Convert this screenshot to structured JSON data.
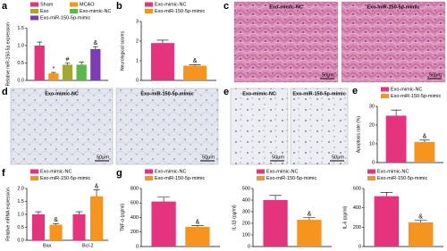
{
  "chart_data": [
    {
      "type": "bar",
      "panel": "a",
      "ylabel": "Relative miR-150-5p expression",
      "categories": [
        null
      ],
      "ylim": [
        0,
        1.5
      ],
      "yticks": [
        {
          "value": 0,
          "label": "0.0"
        },
        0.5,
        {
          "value": 1,
          "label": "1.0"
        },
        1.5
      ],
      "series": [
        {
          "name": "Sham",
          "color": "#e5337e",
          "values": [
            1.0
          ],
          "errors": [
            0.1
          ],
          "annotations": [
            null
          ]
        },
        {
          "name": "MCAO",
          "color": "#f7941d",
          "values": [
            0.2
          ],
          "errors": [
            0.03
          ],
          "annotations": [
            "*"
          ]
        },
        {
          "name": "Exo",
          "color": "#a3a833",
          "values": [
            0.45
          ],
          "errors": [
            0.05
          ],
          "annotations": [
            "#"
          ]
        },
        {
          "name": "Exo-mimic-NC",
          "color": "#5bb84a",
          "values": [
            0.45
          ],
          "errors": [
            0.07
          ],
          "annotations": [
            null
          ]
        },
        {
          "name": "Exo-miR-150-5p-mimic",
          "color": "#7d3bb8",
          "values": [
            0.9
          ],
          "errors": [
            0.07
          ],
          "annotations": [
            "&"
          ]
        }
      ]
    },
    {
      "type": "bar",
      "panel": "b",
      "ylabel": "Neurological scores",
      "categories": [
        null
      ],
      "ylim": [
        0,
        3
      ],
      "yticks": [
        0,
        1,
        2,
        3
      ],
      "series": [
        {
          "name": "Exo-mimic-NC",
          "color": "#e5337e",
          "values": [
            1.9
          ],
          "errors": [
            0.15
          ],
          "annotations": [
            null
          ]
        },
        {
          "name": "Exo-miR-150-5p-mimic",
          "color": "#f7941d",
          "values": [
            0.75
          ],
          "errors": [
            0.05
          ],
          "annotations": [
            "&"
          ]
        }
      ]
    },
    {
      "type": "bar",
      "panel": "e",
      "ylabel": "Apoptosis rate (%)",
      "categories": [
        null
      ],
      "ylim": [
        0,
        30
      ],
      "yticks": [
        0,
        10,
        20,
        30
      ],
      "series": [
        {
          "name": "Exo-mimic-NC",
          "color": "#e5337e",
          "values": [
            25
          ],
          "errors": [
            3
          ],
          "annotations": [
            null
          ]
        },
        {
          "name": "Exo-miR-150-5p-mimic",
          "color": "#f7941d",
          "values": [
            11
          ],
          "errors": [
            1
          ],
          "annotations": [
            "&"
          ]
        }
      ]
    },
    {
      "type": "bar",
      "panel": "f",
      "ylabel": "Relative mRNA expression",
      "categories": [
        "Bax",
        "Bcl-2"
      ],
      "ylim": [
        0,
        2
      ],
      "yticks": [
        {
          "value": 0,
          "label": "0.0"
        },
        0.5,
        {
          "value": 1,
          "label": "1.0"
        },
        1.5,
        {
          "value": 2,
          "label": "2.0"
        }
      ],
      "series": [
        {
          "name": "Exo-mimic-NC",
          "color": "#e5337e",
          "values": [
            1.0,
            1.0
          ],
          "errors": [
            0.1,
            0.1
          ],
          "annotations": [
            null,
            null
          ]
        },
        {
          "name": "Exo-miR-150-5p-mimic",
          "color": "#f7941d",
          "values": [
            0.6,
            1.7
          ],
          "errors": [
            0.05,
            0.25
          ],
          "annotations": [
            "&",
            "&"
          ]
        }
      ]
    },
    {
      "type": "bar",
      "panel": "g",
      "ylabel": "TNF-α (pg/ml)",
      "categories": [
        null
      ],
      "ylim": [
        0,
        800
      ],
      "yticks": [
        0,
        200,
        400,
        600,
        800
      ],
      "series": [
        {
          "name": "Exo-mimic-NC",
          "color": "#e5337e",
          "values": [
            620
          ],
          "errors": [
            60
          ],
          "annotations": [
            null
          ]
        },
        {
          "name": "Exo-miR-150-5p-mimic",
          "color": "#f7941d",
          "values": [
            270
          ],
          "errors": [
            20
          ],
          "annotations": [
            "&"
          ]
        }
      ]
    },
    {
      "type": "bar",
      "ylabel": "IL-1β (pg/ml)",
      "categories": [
        null
      ],
      "ylim": [
        0,
        500
      ],
      "yticks": [
        0,
        100,
        200,
        300,
        400,
        500
      ],
      "series": [
        {
          "name": "Exo-mimic-NC",
          "color": "#e5337e",
          "values": [
            400
          ],
          "errors": [
            40
          ],
          "annotations": [
            null
          ]
        },
        {
          "name": "Exo-miR-150-5p-mimic",
          "color": "#f7941d",
          "values": [
            230
          ],
          "errors": [
            20
          ],
          "annotations": [
            "&"
          ]
        }
      ]
    },
    {
      "type": "bar",
      "ylabel": "IL-6 (pg/ml)",
      "categories": [
        null
      ],
      "ylim": [
        0,
        600
      ],
      "yticks": [
        0,
        200,
        400,
        600
      ],
      "series": [
        {
          "name": "Exo-mimic-NC",
          "color": "#e5337e",
          "values": [
            520
          ],
          "errors": [
            40
          ],
          "annotations": [
            null
          ]
        },
        {
          "name": "Exo-miR-150-5p-mimic",
          "color": "#f7941d",
          "values": [
            250
          ],
          "errors": [
            20
          ],
          "annotations": [
            "&"
          ]
        }
      ]
    }
  ],
  "images": [
    {
      "panel": "c",
      "captions": [
        "Exo-mimic-NC",
        "Exo-miR-150-5p-mimic"
      ],
      "scale_bars": [
        "50μm",
        "50μm"
      ]
    },
    {
      "panel": "d",
      "captions": [
        "Exo-mimic-NC",
        "Exo-miR-150-5p-mimic"
      ],
      "scale_bars": [
        "50μm",
        "50μm"
      ]
    },
    {
      "panel": "e",
      "captions": [
        "Exo-mimic-NC",
        "Exo-miR-150-5p-mimic"
      ],
      "scale_bars": [
        "50μm",
        "50μm"
      ]
    }
  ]
}
